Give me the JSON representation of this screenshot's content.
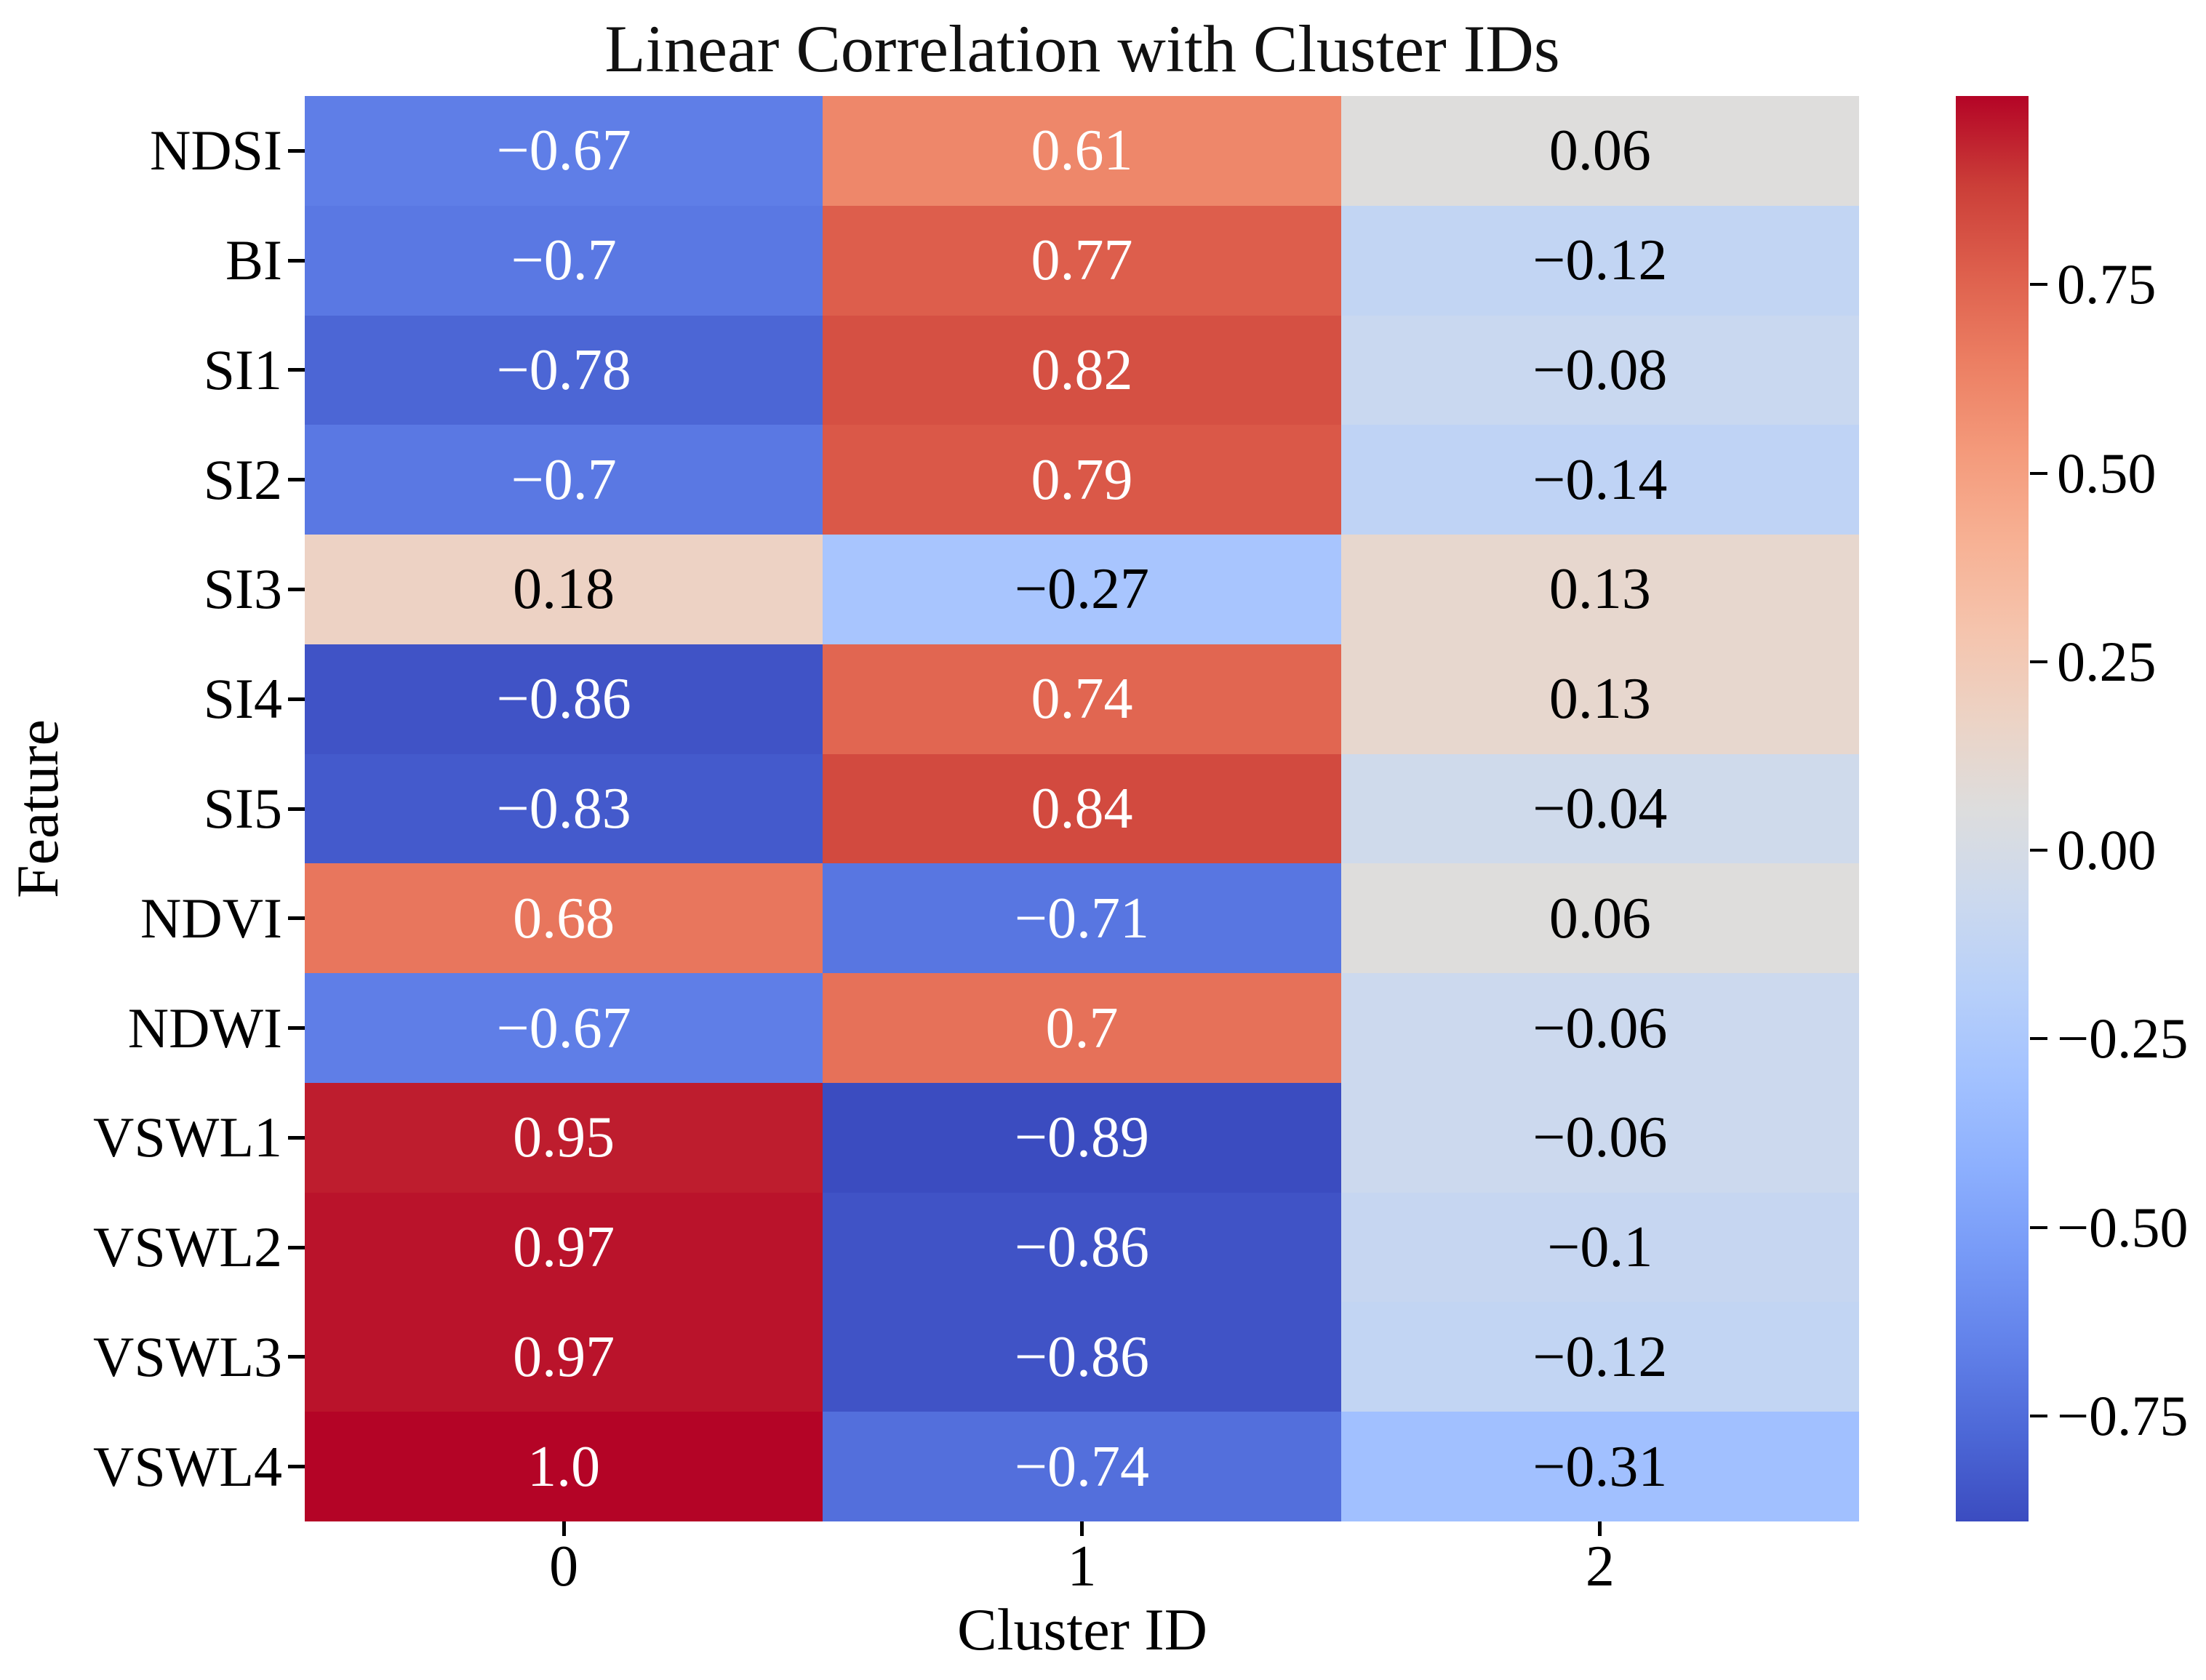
{
  "title": "Linear Correlation with Cluster IDs",
  "x_axis": {
    "label": "Cluster ID",
    "tick_labels": [
      "0",
      "1",
      "2"
    ]
  },
  "y_axis": {
    "label": "Feature"
  },
  "colorbar": {
    "tick_labels": [
      "0.75",
      "0.50",
      "0.25",
      "0.00",
      "−0.25",
      "−0.50",
      "−0.75"
    ],
    "tick_values": [
      0.75,
      0.5,
      0.25,
      0.0,
      -0.25,
      -0.5,
      -0.75
    ]
  },
  "chart_data": {
    "type": "heatmap",
    "title": "Linear Correlation with Cluster IDs",
    "xlabel": "Cluster ID",
    "ylabel": "Feature",
    "categories": [
      "0",
      "1",
      "2"
    ],
    "rows": [
      "NDSI",
      "BI",
      "SI1",
      "SI2",
      "SI3",
      "SI4",
      "SI5",
      "NDVI",
      "NDWI",
      "VSWL1",
      "VSWL2",
      "VSWL3",
      "VSWL4"
    ],
    "values": [
      [
        -0.67,
        0.61,
        0.06
      ],
      [
        -0.7,
        0.77,
        -0.12
      ],
      [
        -0.78,
        0.82,
        -0.08
      ],
      [
        -0.7,
        0.79,
        -0.14
      ],
      [
        0.18,
        -0.27,
        0.13
      ],
      [
        -0.86,
        0.74,
        0.13
      ],
      [
        -0.83,
        0.84,
        -0.04
      ],
      [
        0.68,
        -0.71,
        0.06
      ],
      [
        -0.67,
        0.7,
        -0.06
      ],
      [
        0.95,
        -0.89,
        -0.06
      ],
      [
        0.97,
        -0.86,
        -0.1
      ],
      [
        0.97,
        -0.86,
        -0.12
      ],
      [
        1.0,
        -0.74,
        -0.31
      ]
    ],
    "vmin": -0.89,
    "vmax": 1.0,
    "grid": false,
    "legend": "colorbar-right",
    "colormap": {
      "name": "coolwarm",
      "anchors": [
        "#3B4CC0",
        "#4D68D7",
        "#6282EA",
        "#779AF7",
        "#8DB0FE",
        "#A3C2FF",
        "#B8D0F9",
        "#CCD9EE",
        "#DDDDDD",
        "#ECD3C5",
        "#F5C4AD",
        "#F7B194",
        "#F49A7B",
        "#EC7F63",
        "#DE604D",
        "#CB3E38",
        "#B40426"
      ]
    },
    "annotation_text_colors": {
      "on_light": "#000000",
      "on_dark": "#ffffff"
    }
  }
}
